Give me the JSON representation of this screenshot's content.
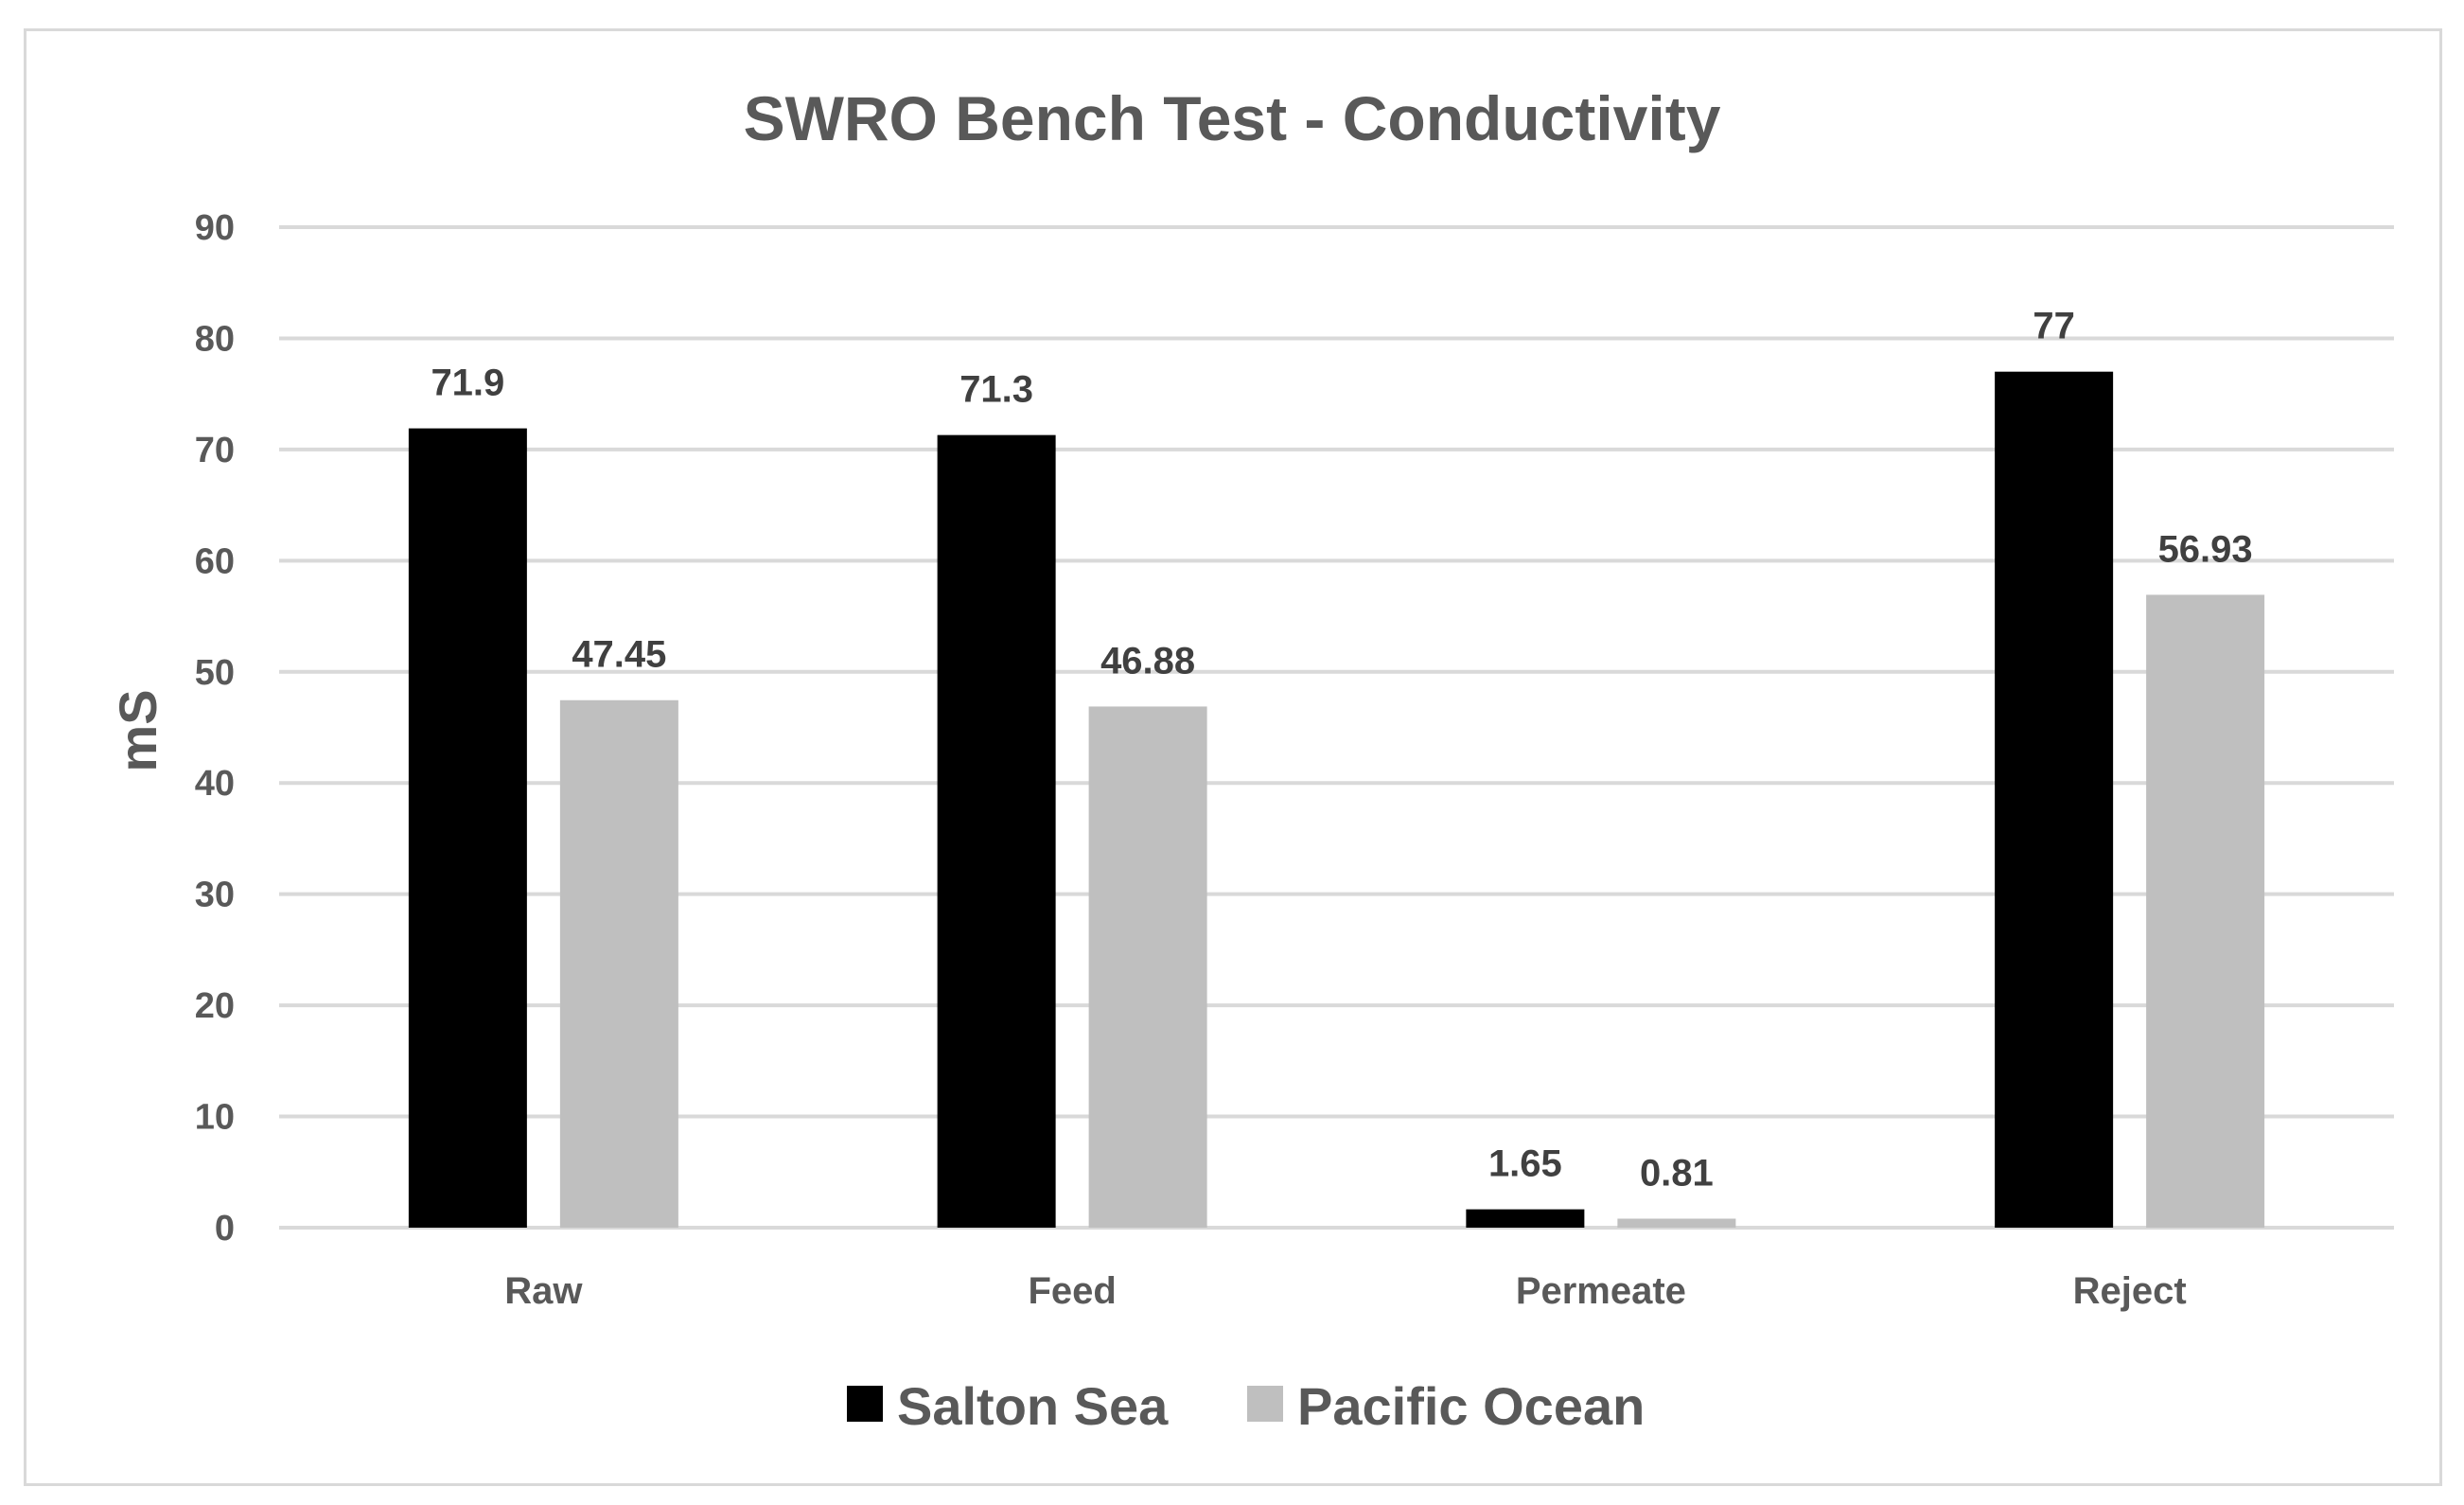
{
  "chart_data": {
    "type": "bar",
    "title": "SWRO Bench Test - Conductivity",
    "xlabel": "",
    "ylabel": "mS",
    "ylim": [
      0,
      90
    ],
    "yticks": [
      0,
      10,
      20,
      30,
      40,
      50,
      60,
      70,
      80,
      90
    ],
    "grid": true,
    "legend_position": "bottom",
    "categories": [
      "Raw",
      "Feed",
      "Permeate",
      "Reject"
    ],
    "series": [
      {
        "name": "Salton Sea",
        "color": "#000000",
        "values": [
          71.9,
          71.3,
          1.65,
          77
        ],
        "labels": [
          "71.9",
          "71.3",
          "1.65",
          "77"
        ]
      },
      {
        "name": "Pacific Ocean",
        "color": "#bfbfbf",
        "values": [
          47.45,
          46.88,
          0.81,
          56.93
        ],
        "labels": [
          "47.45",
          "46.88",
          "0.81",
          "56.93"
        ]
      }
    ]
  }
}
